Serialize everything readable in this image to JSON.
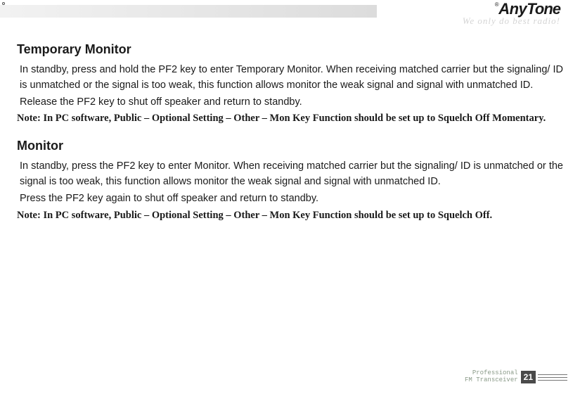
{
  "brand": {
    "name": "AnyTone",
    "tagline": "We only do best radio!"
  },
  "sections": [
    {
      "title": "Temporary Monitor",
      "paragraphs": [
        "In standby, press and hold the PF2 key to enter Temporary Monitor. When receiving matched carrier but the signaling/ ID is unmatched or the signal is too weak, this function allows monitor the weak signal and signal with unmatched ID.",
        "Release the PF2 key to shut off speaker and return to standby."
      ],
      "note": "Note: In PC software, Public – Optional Setting – Other – Mon Key Function should be set up to Squelch Off Momentary."
    },
    {
      "title": "Monitor",
      "paragraphs": [
        "In standby, press the PF2 key to enter Monitor. When receiving matched carrier but the signaling/ ID is unmatched or the signal is too weak, this function allows monitor the weak signal and signal with unmatched ID.",
        "Press the PF2 key again to shut off speaker and return to standby."
      ],
      "note": "Note: In PC software, Public – Optional Setting – Other – Mon Key Function should be set up to Squelch Off."
    }
  ],
  "footer": {
    "line1": "Professional",
    "line2": "FM Transceiver",
    "page": "21"
  }
}
